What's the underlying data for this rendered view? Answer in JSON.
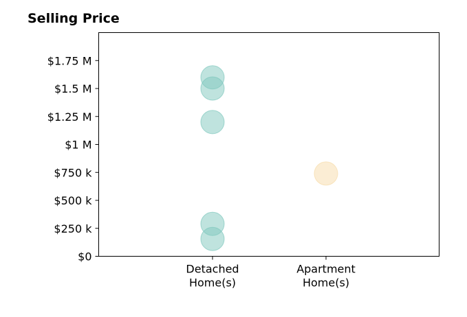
{
  "chart_data": {
    "type": "scatter",
    "title": "Selling Price",
    "xlabel": "",
    "ylabel": "",
    "categories": [
      [
        "Detached",
        "Home(s)"
      ],
      [
        "Apartment",
        "Home(s)"
      ]
    ],
    "y_ticks": [
      {
        "value": 0,
        "label": "$0"
      },
      {
        "value": 250000,
        "label": "$250 k"
      },
      {
        "value": 500000,
        "label": "$500 k"
      },
      {
        "value": 750000,
        "label": "$750 k"
      },
      {
        "value": 1000000,
        "label": "$1 M"
      },
      {
        "value": 1250000,
        "label": "$1.25 M"
      },
      {
        "value": 1500000,
        "label": "$1.5 M"
      },
      {
        "value": 1750000,
        "label": "$1.75 M"
      }
    ],
    "ylim": [
      0,
      2000000
    ],
    "grid": false,
    "legend": "none",
    "points": [
      {
        "category": 0,
        "value": 1600000,
        "color": "#7fc8bd"
      },
      {
        "category": 0,
        "value": 1500000,
        "color": "#7fc8bd"
      },
      {
        "category": 0,
        "value": 1200000,
        "color": "#7fc8bd"
      },
      {
        "category": 0,
        "value": 290000,
        "color": "#7fc8bd"
      },
      {
        "category": 0,
        "value": 155000,
        "color": "#7fc8bd"
      },
      {
        "category": 1,
        "value": 740000,
        "color": "#f7dcaa"
      }
    ]
  }
}
